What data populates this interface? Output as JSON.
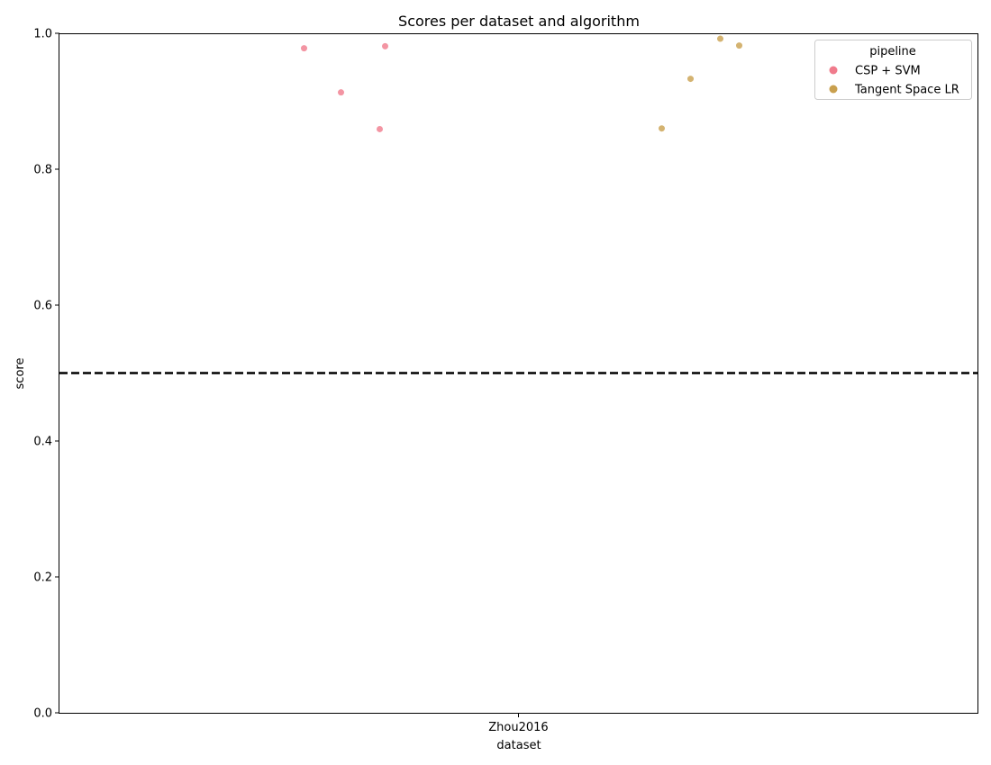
{
  "chart_data": {
    "type": "scatter",
    "title": "Scores per dataset and algorithm",
    "xlabel": "dataset",
    "ylabel": "score",
    "categories": [
      "Zhou2016"
    ],
    "ylim": [
      0,
      1.0
    ],
    "yticks": [
      "0.0",
      "0.2",
      "0.4",
      "0.6",
      "0.8",
      "1.0"
    ],
    "reference_line": {
      "y": 0.5,
      "style": "dashed",
      "color": "#000000"
    },
    "grid": false,
    "legend": {
      "title": "pipeline",
      "placement": "top-right"
    },
    "series": [
      {
        "name": "CSP + SVM",
        "color": "#f07b8c",
        "points": [
          {
            "category": "Zhou2016",
            "y": 0.978
          },
          {
            "category": "Zhou2016",
            "y": 0.913
          },
          {
            "category": "Zhou2016",
            "y": 0.859
          },
          {
            "category": "Zhou2016",
            "y": 0.981
          }
        ]
      },
      {
        "name": "Tangent Space LR",
        "color": "#c9a04e",
        "points": [
          {
            "category": "Zhou2016",
            "y": 0.86
          },
          {
            "category": "Zhou2016",
            "y": 0.933
          },
          {
            "category": "Zhou2016",
            "y": 0.992
          },
          {
            "category": "Zhou2016",
            "y": 0.982
          }
        ]
      }
    ]
  }
}
